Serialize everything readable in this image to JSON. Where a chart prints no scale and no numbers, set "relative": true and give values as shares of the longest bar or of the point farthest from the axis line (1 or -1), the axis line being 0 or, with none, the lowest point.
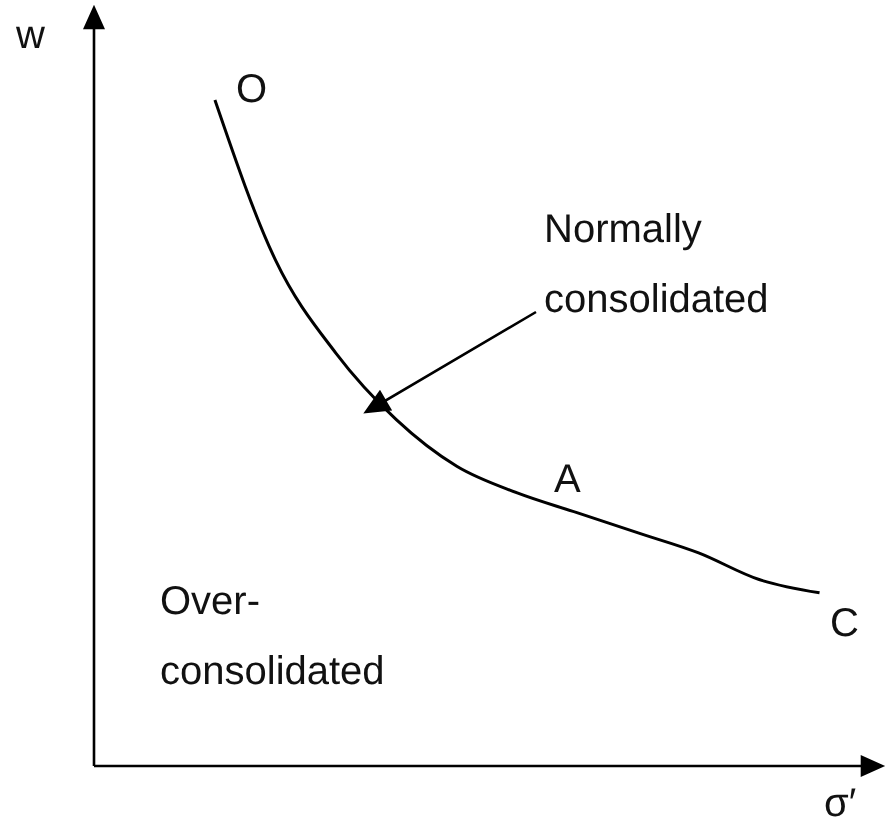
{
  "chart_data": {
    "type": "line",
    "relative": true,
    "xlabel": "σ′",
    "ylabel": "w",
    "categories": [
      null,
      null,
      null,
      null,
      null,
      null,
      null,
      null,
      null,
      null,
      null,
      null,
      null,
      null
    ],
    "series": [
      {
        "color": "#000000",
        "values": [
          null,
          null,
          1,
          0.76,
          0.62,
          0.52,
          0.45,
          0.41,
          0.38,
          0.35,
          0.32,
          0.28,
          0.26,
          null
        ]
      }
    ],
    "annotations": [
      "O",
      "A",
      "C",
      "Normally consolidated",
      "Over-consolidated"
    ],
    "marker": "none",
    "line_style": "solid"
  }
}
